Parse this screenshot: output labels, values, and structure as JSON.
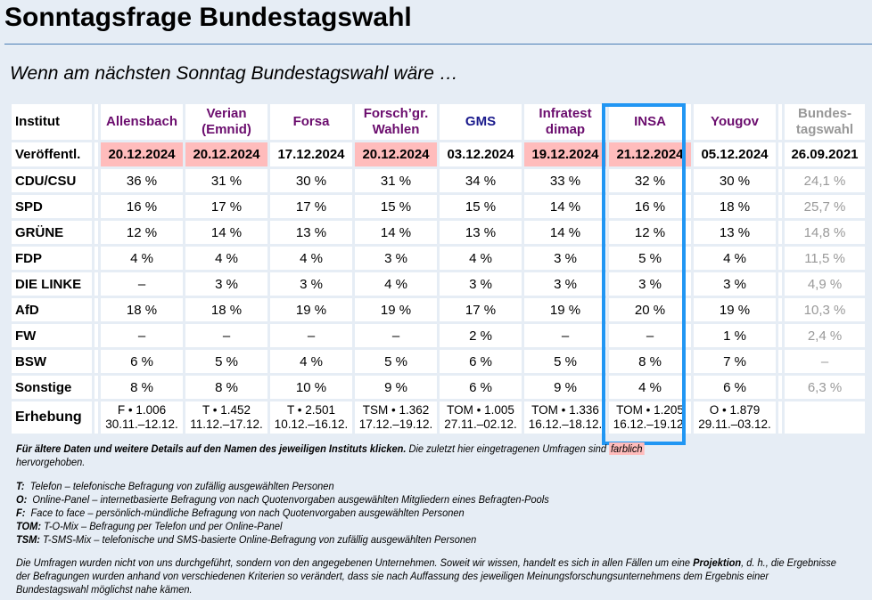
{
  "title": "Sonntagsfrage Bundestagswahl",
  "subtitle": "Wenn am nächsten Sonntag Bundestagswahl wäre …",
  "colors": {
    "highlight": "#ffbcbc",
    "institute_link": "#6b0d6e",
    "gms_link": "#1a1a8c",
    "insa_frame": "#2196f3",
    "election_text": "#999999",
    "background": "#e6edf5"
  },
  "table": {
    "row_labels": {
      "institut": "Institut",
      "published": "Veröffentl.",
      "survey": "Erhebung"
    },
    "institutes": [
      {
        "name_line1": "Allensbach",
        "name_line2": "",
        "published": "20.12.2024",
        "highlight": true,
        "survey_line1": "F • 1.006",
        "survey_line2": "30.11.–12.12."
      },
      {
        "name_line1": "Verian",
        "name_line2": "(Emnid)",
        "published": "20.12.2024",
        "highlight": true,
        "survey_line1": "T • 1.452",
        "survey_line2": "11.12.–17.12."
      },
      {
        "name_line1": "Forsa",
        "name_line2": "",
        "published": "17.12.2024",
        "highlight": false,
        "survey_line1": "T • 2.501",
        "survey_line2": "10.12.–16.12."
      },
      {
        "name_line1": "Forsch’gr.",
        "name_line2": "Wahlen",
        "published": "20.12.2024",
        "highlight": true,
        "survey_line1": "TSM • 1.362",
        "survey_line2": "17.12.–19.12."
      },
      {
        "name_line1": "GMS",
        "name_line2": "",
        "published": "03.12.2024",
        "highlight": false,
        "survey_line1": "TOM • 1.005",
        "survey_line2": "27.11.–02.12."
      },
      {
        "name_line1": "Infratest",
        "name_line2": "dimap",
        "published": "19.12.2024",
        "highlight": true,
        "survey_line1": "TOM • 1.336",
        "survey_line2": "16.12.–18.12."
      },
      {
        "name_line1": "INSA",
        "name_line2": "",
        "published": "21.12.2024",
        "highlight": true,
        "survey_line1": "TOM • 1.205",
        "survey_line2": "16.12.–19.12."
      },
      {
        "name_line1": "Yougov",
        "name_line2": "",
        "published": "05.12.2024",
        "highlight": false,
        "survey_line1": "O • 1.879",
        "survey_line2": "29.11.–03.12."
      }
    ],
    "election": {
      "name_line1": "Bundes-",
      "name_line2": "tagswahl",
      "date": "26.09.2021"
    },
    "parties": [
      {
        "name": "CDU/CSU",
        "values": [
          "36 %",
          "31 %",
          "30 %",
          "31 %",
          "34 %",
          "33 %",
          "32 %",
          "30 %"
        ],
        "election": "24,1 %"
      },
      {
        "name": "SPD",
        "values": [
          "16 %",
          "17 %",
          "17 %",
          "15 %",
          "15 %",
          "14 %",
          "16 %",
          "18 %"
        ],
        "election": "25,7 %"
      },
      {
        "name": "GRÜNE",
        "values": [
          "12 %",
          "14 %",
          "13 %",
          "14 %",
          "13 %",
          "14 %",
          "12 %",
          "13 %"
        ],
        "election": "14,8 %"
      },
      {
        "name": "FDP",
        "values": [
          "4 %",
          "4 %",
          "4 %",
          "3 %",
          "4 %",
          "3 %",
          "5 %",
          "4 %"
        ],
        "election": "11,5 %"
      },
      {
        "name": "DIE LINKE",
        "values": [
          "–",
          "3 %",
          "3 %",
          "4 %",
          "3 %",
          "3 %",
          "3 %",
          "3 %"
        ],
        "election": "4,9 %"
      },
      {
        "name": "AfD",
        "values": [
          "18 %",
          "18 %",
          "19 %",
          "19 %",
          "17 %",
          "19 %",
          "20 %",
          "19 %"
        ],
        "election": "10,3 %"
      },
      {
        "name": "FW",
        "values": [
          "–",
          "–",
          "–",
          "–",
          "2 %",
          "–",
          "–",
          "1 %"
        ],
        "election": "2,4 %"
      },
      {
        "name": "BSW",
        "values": [
          "6 %",
          "5 %",
          "4 %",
          "5 %",
          "6 %",
          "5 %",
          "8 %",
          "7 %"
        ],
        "election": "–"
      },
      {
        "name": "Sonstige",
        "values": [
          "8 %",
          "8 %",
          "10 %",
          "9 %",
          "6 %",
          "9 %",
          "4 %",
          "6 %"
        ],
        "election": "6,3 %"
      }
    ]
  },
  "notes": {
    "click_hint_bold": "Für ältere Daten und weitere Details auf den Namen des jeweiligen Instituts klicken.",
    "click_hint_rest": " Die zuletzt hier eingetragenen Umfragen sind ",
    "highlight_word": "farblich",
    "click_hint_end": " hervorgehoben.",
    "legend": [
      {
        "key": "T:",
        "text": "  Telefon – telefonische Befragung von zufällig ausgewählten Personen"
      },
      {
        "key": "O:",
        "text": "  Online-Panel – internetbasierte Befragung von nach Quotenvorgaben ausgewählten Mitgliedern eines Befragten-Pools"
      },
      {
        "key": "F:",
        "text": "  Face to face – persönlich-mündliche Befragung von nach Quotenvorgaben ausgewählten Personen"
      },
      {
        "key": "TOM:",
        "text": " T-O-Mix – Befragung per Telefon und per Online-Panel"
      },
      {
        "key": "TSM:",
        "text": " T-SMS-Mix – telefonische und SMS-basierte Online-Befragung von zufällig ausgewählten Personen"
      }
    ],
    "disclaimer_part1": "Die Umfragen wurden nicht von uns durchgeführt, sondern von den angegebenen Unternehmen. Soweit wir wissen, handelt es sich in allen Fällen um eine ",
    "disclaimer_bold": "Projektion",
    "disclaimer_part2": ", d. h., die Ergebnisse der Befragungen wurden anhand von verschiedenen Kriterien so verändert, dass sie nach Auffassung des jeweiligen Meinungsforschungsunternehmens dem Ergebnis einer Bundestagswahl möglichst nahe kämen."
  }
}
